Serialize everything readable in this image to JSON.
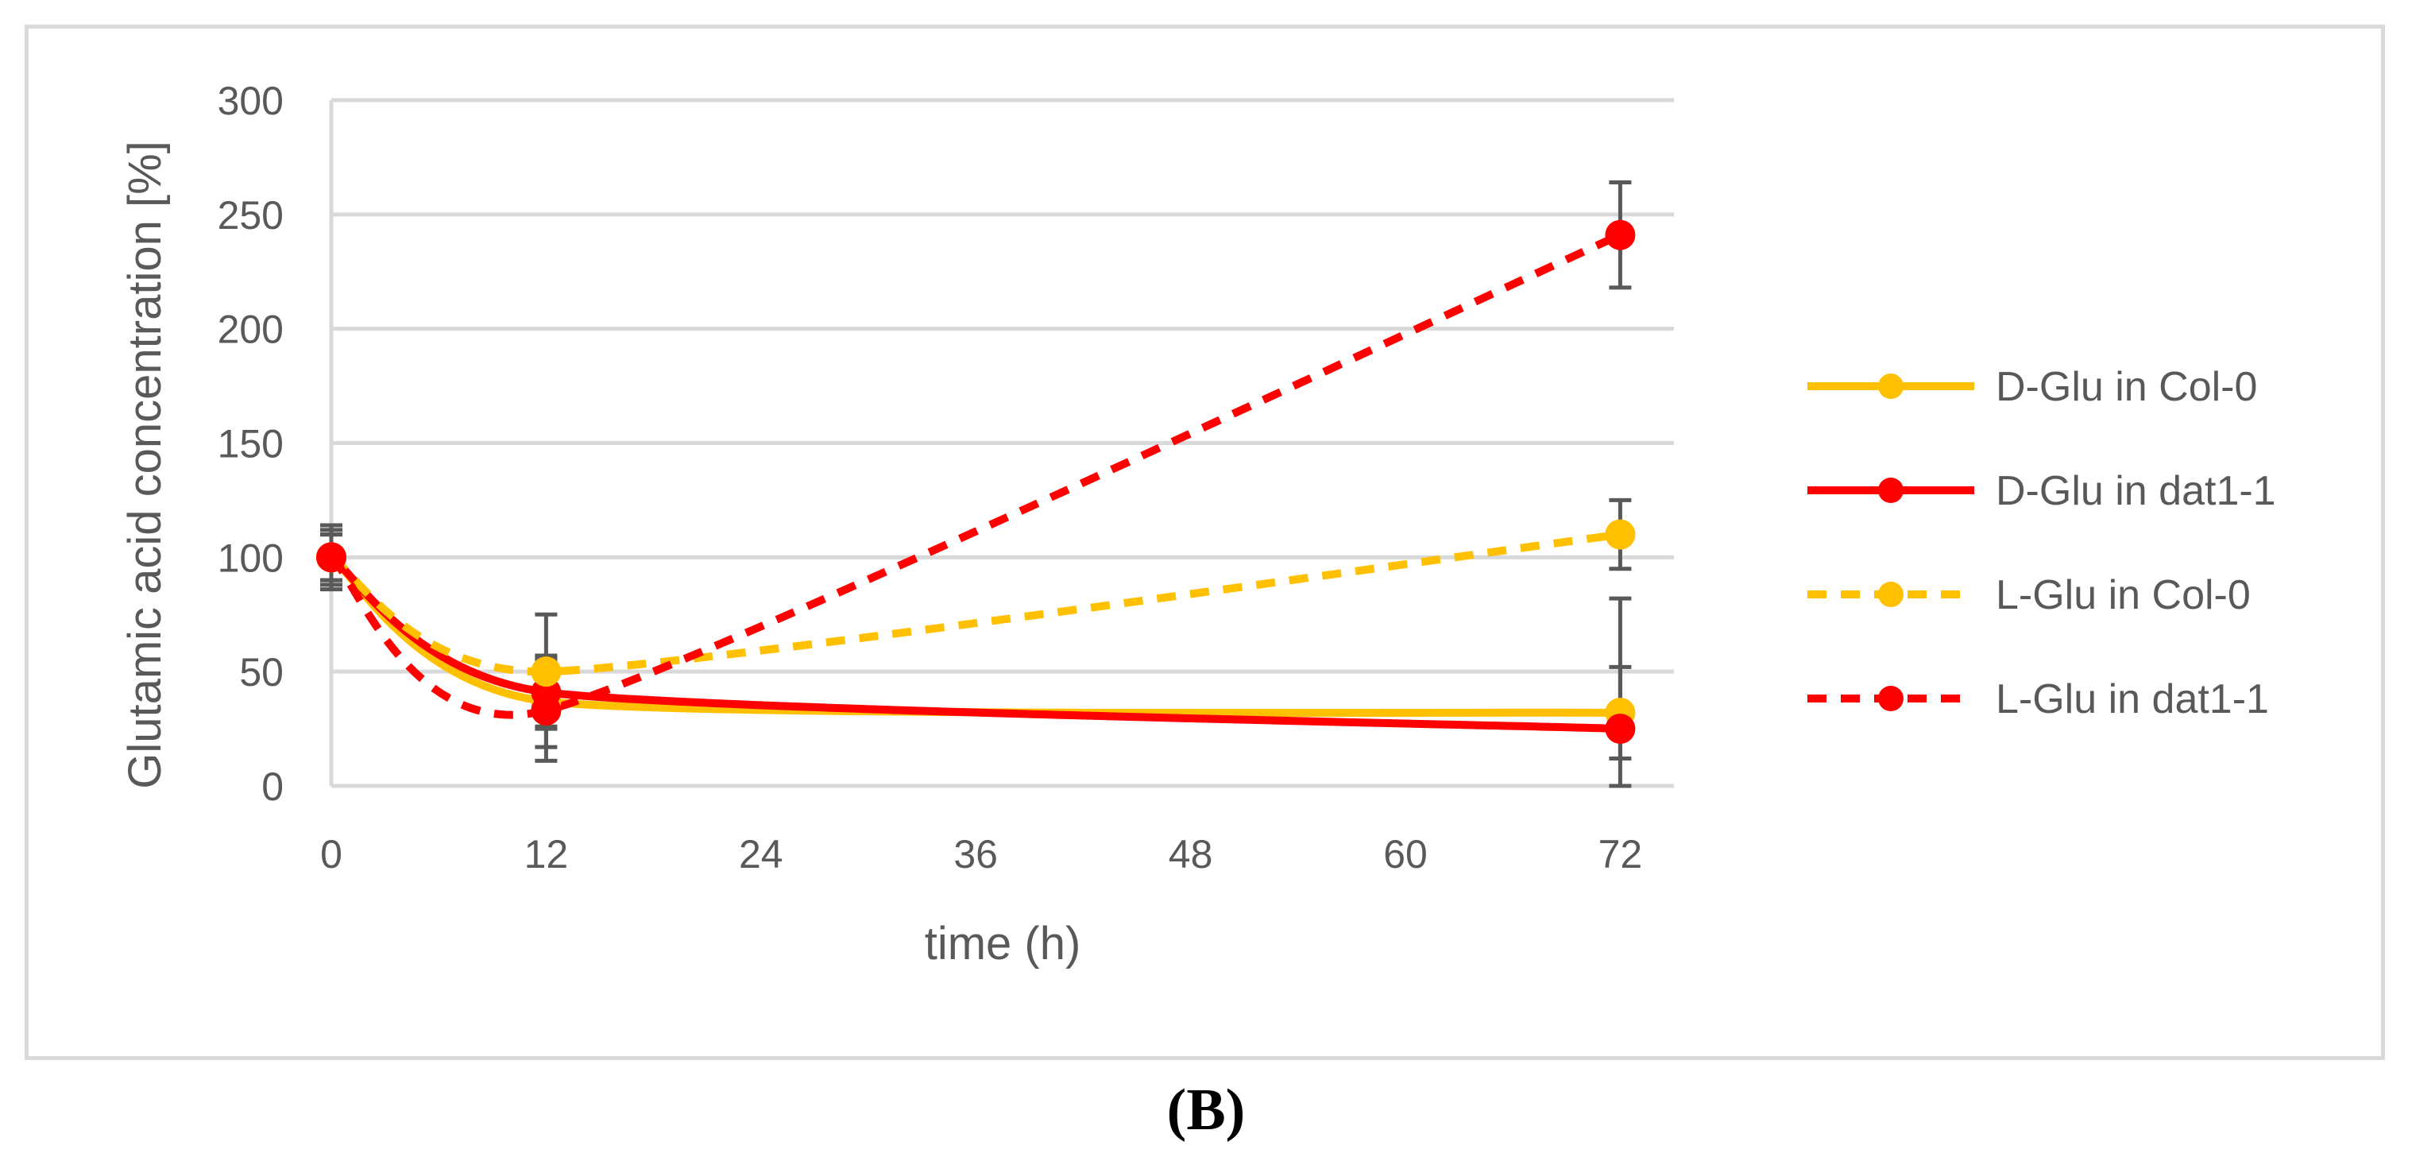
{
  "chart_data": {
    "type": "line",
    "title": "",
    "xlabel": "time (h)",
    "ylabel": "Glutamic acid concentration [%]",
    "xlim": [
      0,
      75
    ],
    "ylim": [
      0,
      300
    ],
    "xticks": [
      0,
      12,
      24,
      36,
      48,
      60,
      72
    ],
    "yticks": [
      0,
      50,
      100,
      150,
      200,
      250,
      300
    ],
    "grid": "horizontal",
    "legend_position": "right",
    "series": [
      {
        "name": "D-Glu in Col-0",
        "color": "#FFC000",
        "dash": "solid",
        "x": [
          0,
          12,
          72
        ],
        "values": [
          100,
          37,
          32
        ],
        "errors": [
          10,
          20,
          20
        ]
      },
      {
        "name": "D-Glu in dat1-1",
        "color": "#FF0000",
        "dash": "solid",
        "x": [
          0,
          12,
          72
        ],
        "values": [
          100,
          41,
          25
        ],
        "errors": [
          10,
          15,
          57
        ]
      },
      {
        "name": "L-Glu in Col-0",
        "color": "#FFC000",
        "dash": "dashed",
        "x": [
          0,
          12,
          72
        ],
        "values": [
          100,
          50,
          110
        ],
        "errors": [
          14,
          25,
          15
        ]
      },
      {
        "name": "L-Glu in dat1-1",
        "color": "#FF0000",
        "dash": "dashed",
        "x": [
          0,
          12,
          72
        ],
        "values": [
          100,
          33,
          241
        ],
        "errors": [
          12,
          22,
          23
        ]
      }
    ]
  },
  "panel_label": "(B)"
}
